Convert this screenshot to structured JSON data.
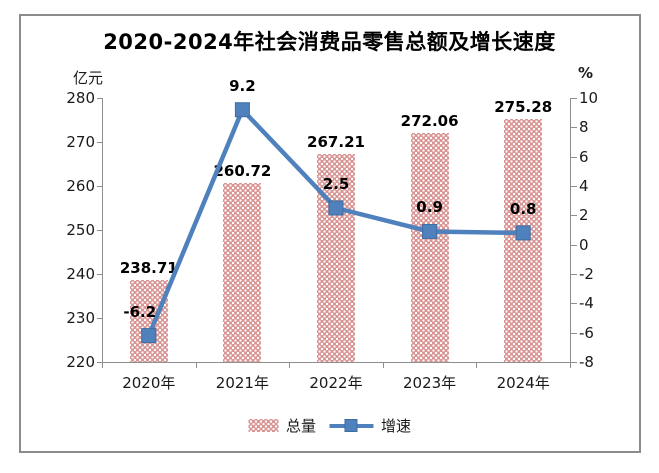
{
  "title": "2020-2024年社会消费品零售总额及增长速度",
  "chart_data": {
    "type": "combo-bar-line",
    "title": "2020-2024年社会消费品零售总额及增长速度",
    "categories": [
      "2020年",
      "2021年",
      "2022年",
      "2023年",
      "2024年"
    ],
    "series": [
      {
        "name": "总量",
        "type": "bar",
        "axis": "left",
        "values": [
          238.71,
          260.72,
          267.21,
          272.06,
          275.28
        ],
        "labels": [
          "238.71",
          "260.72",
          "267.21",
          "272.06",
          "275.28"
        ],
        "color": "#D99694",
        "pattern": "white-dots"
      },
      {
        "name": "增速",
        "type": "line",
        "axis": "right",
        "values": [
          -6.2,
          9.2,
          2.5,
          0.9,
          0.8
        ],
        "labels": [
          "-6.2",
          "9.2",
          "2.5",
          "0.9",
          "0.8"
        ],
        "color": "#4F81BD",
        "marker": "square"
      }
    ],
    "left_axis": {
      "unit": "亿元",
      "min": 220,
      "max": 280,
      "step": 10,
      "tick_labels": [
        "280",
        "270",
        "260",
        "250",
        "240",
        "230",
        "220"
      ]
    },
    "right_axis": {
      "unit": "%",
      "min": -8,
      "max": 10,
      "step": 2,
      "tick_labels": [
        "10",
        "8",
        "6",
        "4",
        "2",
        "0",
        "-2",
        "-4",
        "-6",
        "-8"
      ]
    },
    "legend_position": "bottom",
    "grid": false
  },
  "colors": {
    "bar": "#D99694",
    "line": "#4F81BD",
    "marker_border": "#3D6DA3",
    "axis": "#8E8E8E",
    "frame_border": "#8C8C8C",
    "tick_text": "#1a1a1a",
    "value_text": "#000000"
  }
}
